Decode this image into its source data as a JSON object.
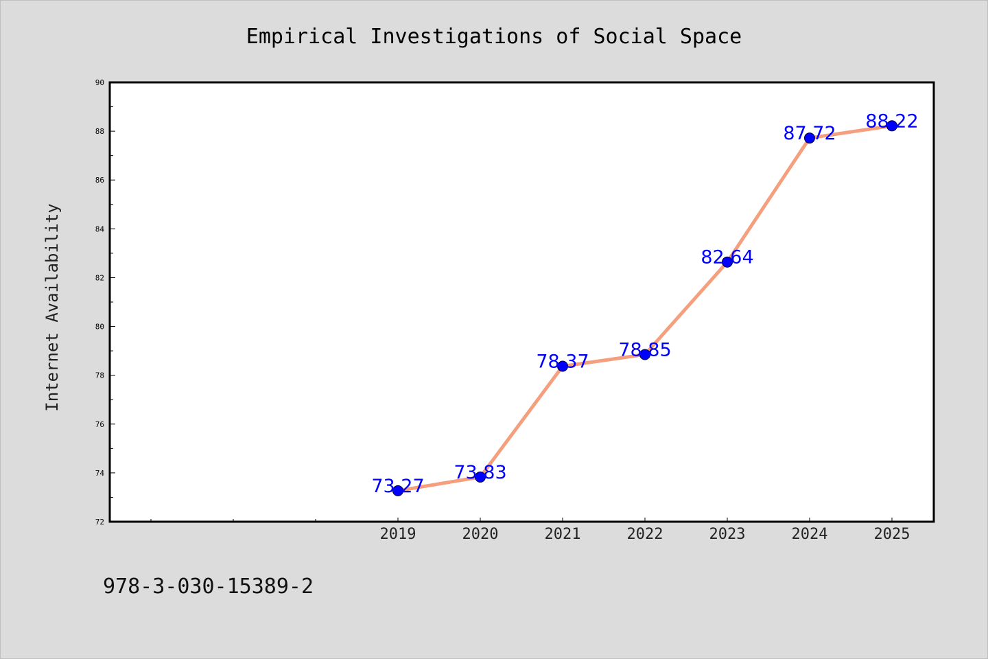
{
  "chart_data": {
    "type": "line",
    "title": "Empirical Investigations of Social Space",
    "xlabel": "",
    "ylabel": "Internet Availability",
    "x": [
      "2019",
      "2020",
      "2021",
      "2022",
      "2023",
      "2024",
      "2025"
    ],
    "series": [
      {
        "values": [
          73.27,
          73.83,
          78.37,
          78.85,
          82.64,
          87.72,
          88.22
        ],
        "labels": [
          "73.27",
          "73.83",
          "78.37",
          "78.85",
          "82.64",
          "87.72",
          "88.22"
        ]
      }
    ],
    "ylim": [
      72,
      90
    ],
    "yticks": [
      "72",
      "74",
      "76",
      "78",
      "80",
      "82",
      "84",
      "86",
      "88",
      "90"
    ],
    "grid": false,
    "legend": "none"
  },
  "footer_text": "978-3-030-15389-2",
  "colors": {
    "background": "#dcdcdc",
    "plot_bg": "#ffffff",
    "line": "#f4a07f",
    "marker": "#0000ff",
    "data_label": "#0000ff",
    "axis": "#000000"
  }
}
